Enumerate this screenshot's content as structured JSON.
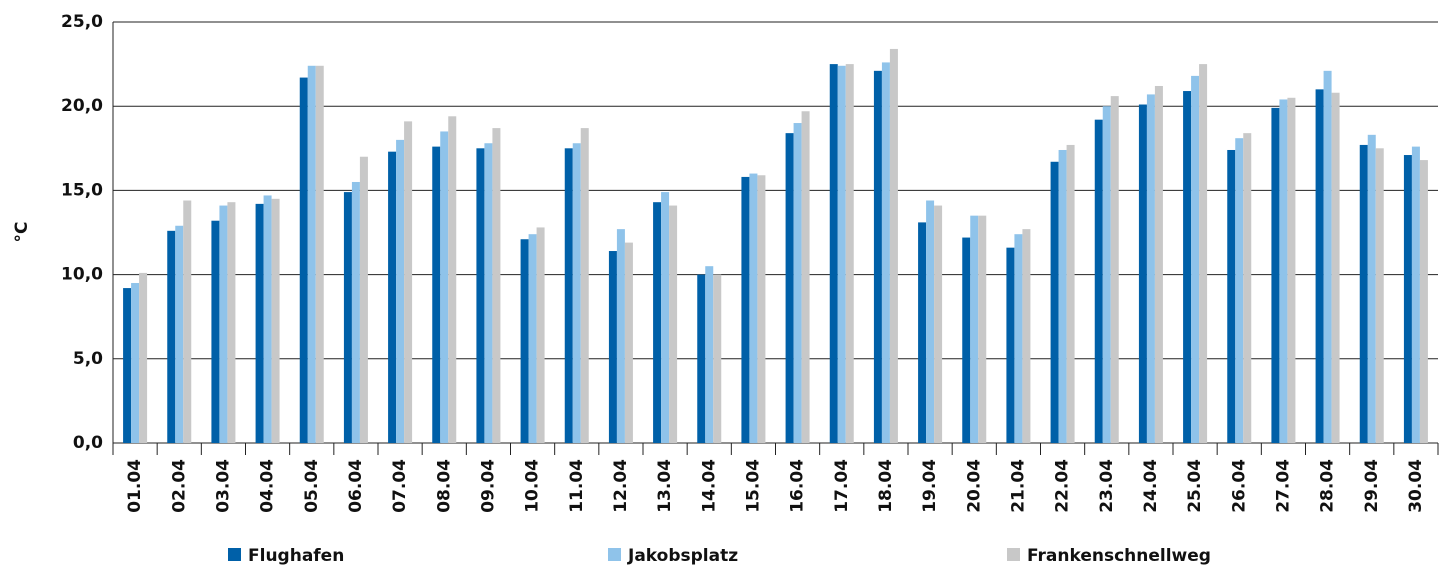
{
  "chart_data": {
    "type": "bar",
    "ylabel": "°C",
    "categories": [
      "01.04",
      "02.04",
      "03.04",
      "04.04",
      "05.04",
      "06.04",
      "07.04",
      "08.04",
      "09.04",
      "10.04",
      "11.04",
      "12.04",
      "13.04",
      "14.04",
      "15.04",
      "16.04",
      "17.04",
      "18.04",
      "19.04",
      "20.04",
      "21.04",
      "22.04",
      "23.04",
      "24.04",
      "25.04",
      "26.04",
      "27.04",
      "28.04",
      "29.04",
      "30.04"
    ],
    "series": [
      {
        "name": "Flughafen",
        "color": "#0060a8",
        "values": [
          9.2,
          12.6,
          13.2,
          14.2,
          21.7,
          14.9,
          17.3,
          17.6,
          17.5,
          12.1,
          17.5,
          11.4,
          14.3,
          10.0,
          15.8,
          18.4,
          22.5,
          22.1,
          13.1,
          12.2,
          11.6,
          16.7,
          19.2,
          20.1,
          20.9,
          17.4,
          19.9,
          21.0,
          17.7,
          17.1
        ]
      },
      {
        "name": "Jakobsplatz",
        "color": "#8fc3ea",
        "values": [
          9.5,
          12.9,
          14.1,
          14.7,
          22.4,
          15.5,
          18.0,
          18.5,
          17.8,
          12.4,
          17.8,
          12.7,
          14.9,
          10.5,
          16.0,
          19.0,
          22.4,
          22.6,
          14.4,
          13.5,
          12.4,
          17.4,
          20.0,
          20.7,
          21.8,
          18.1,
          20.4,
          22.1,
          18.3,
          17.6
        ]
      },
      {
        "name": "Frankenschnellweg",
        "color": "#c8c8c8",
        "values": [
          10.1,
          14.4,
          14.3,
          14.5,
          22.4,
          17.0,
          19.1,
          19.4,
          18.7,
          12.8,
          18.7,
          11.9,
          14.1,
          10.0,
          15.9,
          19.7,
          22.5,
          23.4,
          14.1,
          13.5,
          12.7,
          17.7,
          20.6,
          21.2,
          22.5,
          18.4,
          20.5,
          20.8,
          17.5,
          16.8
        ]
      }
    ],
    "ylim": [
      0,
      25
    ],
    "yticks": [
      {
        "value": 0,
        "label": "0,0"
      },
      {
        "value": 5,
        "label": "5,0"
      },
      {
        "value": 10,
        "label": "10,0"
      },
      {
        "value": 15,
        "label": "15,0"
      },
      {
        "value": 20,
        "label": "20,0"
      },
      {
        "value": 25,
        "label": "25,0"
      }
    ],
    "grid": true,
    "legend": "bottom"
  }
}
